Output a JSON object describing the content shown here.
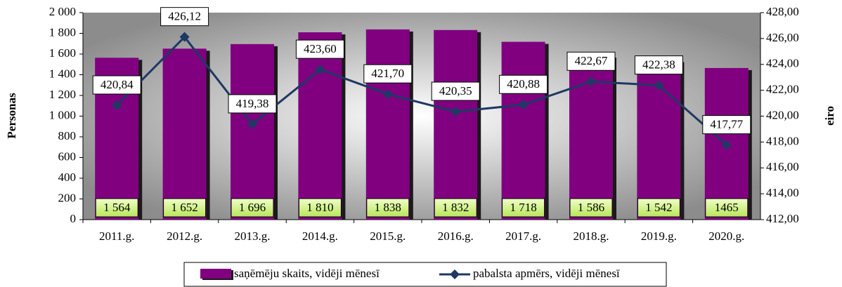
{
  "chart_data": {
    "type": "bar",
    "categories": [
      "2011.g.",
      "2012.g.",
      "2013.g.",
      "2014.g.",
      "2015.g.",
      "2016.g.",
      "2017.g.",
      "2018.g.",
      "2019.g.",
      "2020.g."
    ],
    "y_label": "Personas",
    "y2_label": "eiro",
    "ylim": [
      0,
      2000
    ],
    "yticks": [
      0,
      {
        "value": 200,
        "label": "200"
      },
      {
        "value": 400,
        "label": "400"
      },
      {
        "value": 600,
        "label": "600"
      },
      {
        "value": 800,
        "label": "800"
      },
      {
        "value": 1000,
        "label": "1 000"
      },
      {
        "value": 1200,
        "label": "1 200"
      },
      {
        "value": 1400,
        "label": "1 400"
      },
      {
        "value": 1600,
        "label": "1 600"
      },
      {
        "value": 1800,
        "label": "1 800"
      },
      {
        "value": 2000,
        "label": "2 000"
      }
    ],
    "y2lim": [
      412,
      428
    ],
    "y2ticks": [
      {
        "value": 412,
        "label": "412,00"
      },
      {
        "value": 414,
        "label": "414,00"
      },
      {
        "value": 416,
        "label": "416,00"
      },
      {
        "value": 418,
        "label": "418,00"
      },
      {
        "value": 420,
        "label": "420,00"
      },
      {
        "value": 422,
        "label": "422,00"
      },
      {
        "value": 424,
        "label": "424,00"
      },
      {
        "value": 426,
        "label": "426,00"
      },
      {
        "value": 428,
        "label": "428,00"
      }
    ],
    "series": [
      {
        "name": "saņēmēju skaits, vidēji mēnesī",
        "type": "bar",
        "color": "#800080",
        "values": [
          1564,
          1652,
          1696,
          1810,
          1838,
          1832,
          1718,
          1586,
          1542,
          1465
        ],
        "value_labels": [
          "1 564",
          "1 652",
          "1 696",
          "1 810",
          "1 838",
          "1 832",
          "1 718",
          "1 586",
          "1 542",
          "1465"
        ]
      },
      {
        "name": "pabalsta apmērs, vidēji mēnesī",
        "type": "line",
        "axis": "y2",
        "color": "#1f3864",
        "values": [
          420.84,
          426.12,
          419.38,
          423.6,
          421.7,
          420.35,
          420.88,
          422.67,
          422.38,
          417.77
        ],
        "value_labels": [
          "420,84",
          "426,12",
          "419,38",
          "423,60",
          "421,70",
          "420,35",
          "420,88",
          "422,67",
          "422,38",
          "417,77"
        ]
      }
    ]
  }
}
